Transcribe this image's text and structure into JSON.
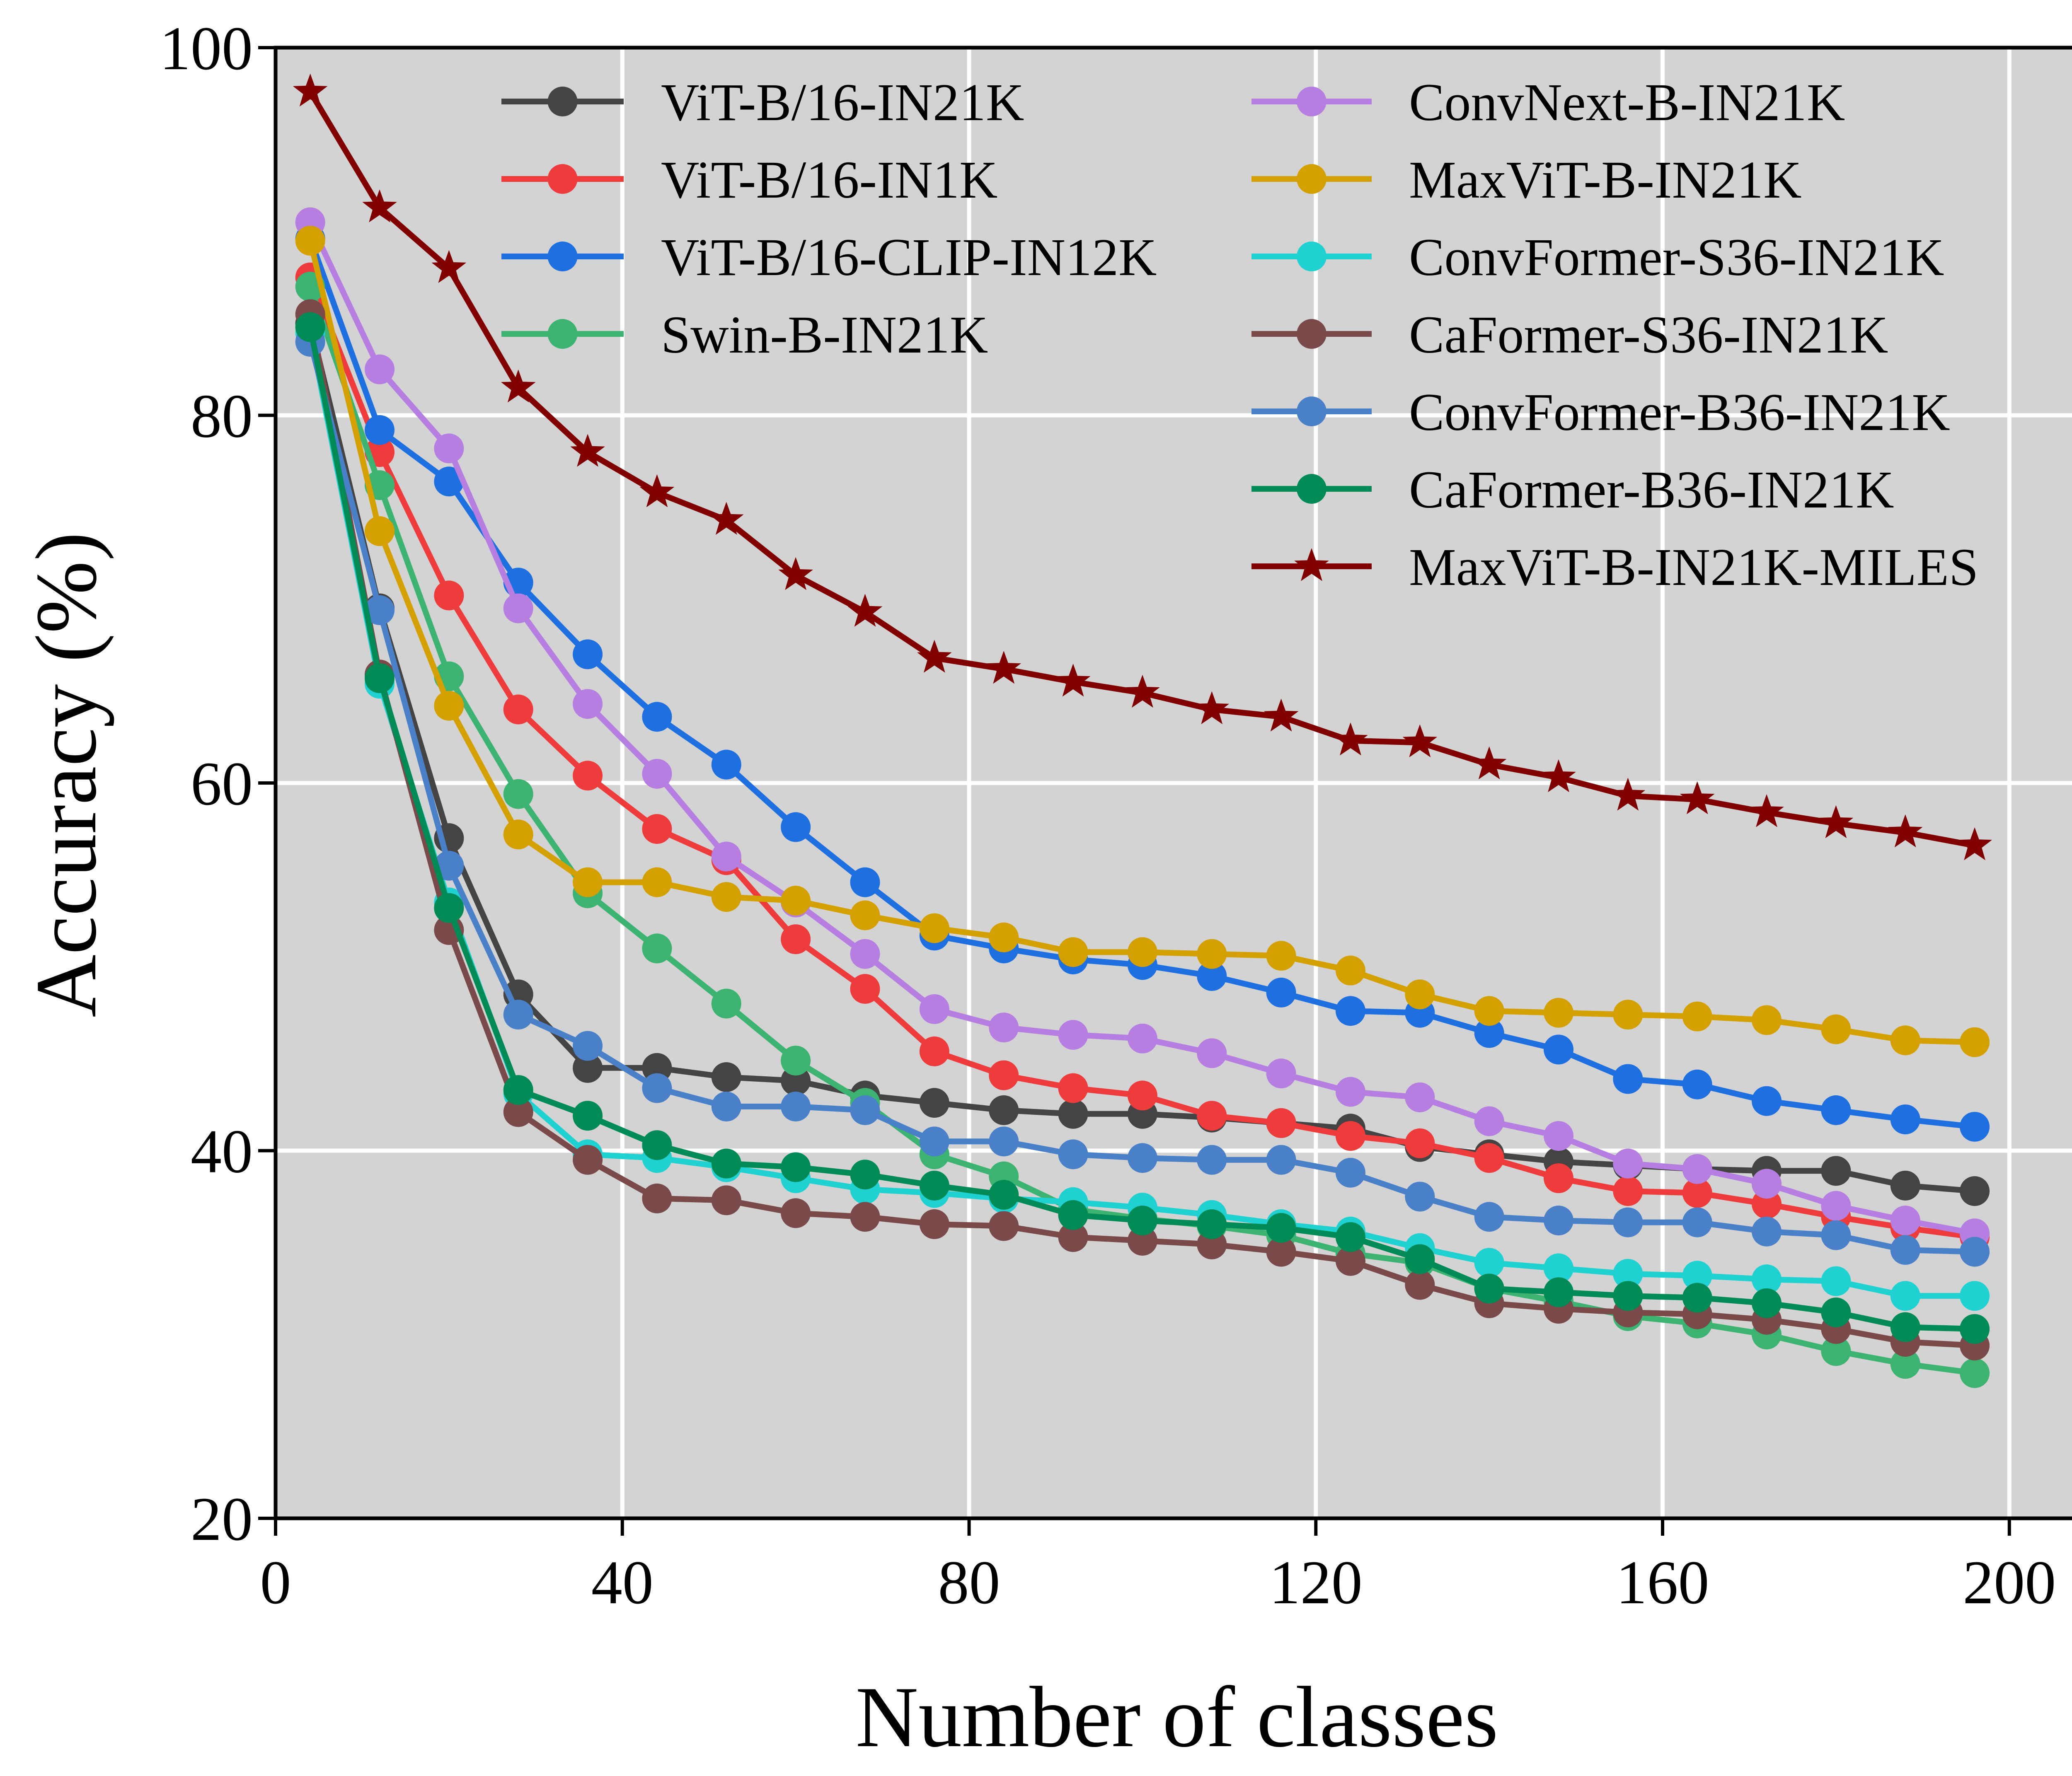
{
  "chart_data": {
    "type": "line",
    "title": "",
    "xlabel": "Number of classes",
    "ylabel": "Accuracy (%)",
    "xlim": [
      0,
      210
    ],
    "ylim": [
      20,
      100
    ],
    "xticks": [
      0,
      40,
      80,
      120,
      160,
      200
    ],
    "yticks": [
      20,
      40,
      60,
      80,
      100
    ],
    "grid": true,
    "legend_position": "top-right",
    "x": [
      4,
      12,
      20,
      28,
      36,
      44,
      52,
      60,
      68,
      76,
      84,
      92,
      100,
      108,
      116,
      124,
      132,
      140,
      148,
      156,
      164,
      172,
      180,
      188,
      196
    ],
    "series": [
      {
        "name": "ViT-B/16-IN21K",
        "color": "#444444",
        "marker": "circle",
        "values": [
          85.0,
          69.5,
          57.0,
          48.5,
          44.5,
          44.5,
          44.0,
          43.8,
          43.0,
          42.6,
          42.2,
          42.0,
          42.0,
          41.8,
          41.5,
          41.2,
          40.2,
          39.8,
          39.4,
          39.2,
          39.0,
          38.9,
          38.9,
          38.1,
          37.8
        ]
      },
      {
        "name": "ViT-B/16-IN1K",
        "color": "#ee3b3b",
        "marker": "circle",
        "values": [
          87.5,
          78.0,
          70.2,
          64.0,
          60.4,
          57.5,
          55.8,
          51.5,
          48.8,
          45.4,
          44.1,
          43.4,
          43.0,
          41.9,
          41.5,
          40.8,
          40.4,
          39.6,
          38.5,
          37.8,
          37.7,
          37.1,
          36.4,
          35.8,
          35.3
        ]
      },
      {
        "name": "ViT-B/16-CLIP-IN12K",
        "color": "#1e6fe0",
        "marker": "circle",
        "values": [
          89.6,
          79.2,
          76.4,
          70.9,
          67.0,
          63.6,
          61.0,
          57.6,
          54.6,
          51.7,
          51.0,
          50.4,
          50.1,
          49.5,
          48.6,
          47.6,
          47.5,
          46.4,
          45.5,
          43.9,
          43.6,
          42.7,
          42.2,
          41.7,
          41.3
        ]
      },
      {
        "name": "Swin-B-IN21K",
        "color": "#3cb371",
        "marker": "circle",
        "values": [
          87.0,
          76.2,
          65.8,
          59.4,
          54.0,
          51.0,
          48.0,
          44.9,
          42.6,
          39.8,
          38.6,
          36.8,
          36.3,
          35.9,
          35.4,
          34.4,
          33.9,
          32.5,
          31.8,
          31.0,
          30.6,
          30.0,
          29.1,
          28.4,
          27.9
        ]
      },
      {
        "name": "ConvNext-B-IN21K",
        "color": "#b57ee0",
        "marker": "circle",
        "values": [
          90.5,
          82.5,
          78.2,
          69.5,
          64.3,
          60.5,
          56.0,
          53.5,
          50.7,
          47.7,
          46.7,
          46.3,
          46.1,
          45.3,
          44.2,
          43.2,
          42.9,
          41.6,
          40.8,
          39.3,
          39.0,
          38.2,
          37.0,
          36.2,
          35.5
        ]
      },
      {
        "name": "MaxViT-B-IN21K",
        "color": "#d4a000",
        "marker": "circle",
        "values": [
          89.5,
          73.7,
          64.2,
          57.2,
          54.6,
          54.6,
          53.8,
          53.6,
          52.8,
          52.1,
          51.6,
          50.8,
          50.8,
          50.7,
          50.6,
          49.8,
          48.5,
          47.6,
          47.5,
          47.4,
          47.3,
          47.1,
          46.6,
          46.0,
          45.9
        ]
      },
      {
        "name": "ConvFormer-S36-IN21K",
        "color": "#1fd1d1",
        "marker": "circle",
        "values": [
          84.5,
          65.4,
          53.5,
          43.1,
          39.8,
          39.6,
          39.1,
          38.5,
          37.9,
          37.7,
          37.4,
          37.2,
          36.9,
          36.5,
          36.0,
          35.6,
          34.7,
          33.9,
          33.6,
          33.3,
          33.2,
          33.0,
          32.9,
          32.1,
          32.1
        ]
      },
      {
        "name": "CaFormer-S36-IN21K",
        "color": "#7a4a4a",
        "marker": "circle",
        "values": [
          85.5,
          65.9,
          52.0,
          42.1,
          39.5,
          37.4,
          37.3,
          36.6,
          36.4,
          36.0,
          35.9,
          35.3,
          35.1,
          34.9,
          34.5,
          34.0,
          32.7,
          31.7,
          31.4,
          31.2,
          31.1,
          30.8,
          30.3,
          29.6,
          29.4
        ]
      },
      {
        "name": "ConvFormer-B36-IN21K",
        "color": "#4a80c8",
        "marker": "circle",
        "values": [
          84.0,
          69.4,
          55.5,
          47.4,
          45.7,
          43.4,
          42.4,
          42.4,
          42.2,
          40.5,
          40.5,
          39.8,
          39.6,
          39.5,
          39.5,
          38.8,
          37.5,
          36.4,
          36.2,
          36.1,
          36.1,
          35.6,
          35.4,
          34.6,
          34.5
        ]
      },
      {
        "name": "CaFormer-B36-IN21K",
        "color": "#008a56",
        "marker": "circle",
        "values": [
          84.8,
          65.7,
          53.2,
          43.3,
          41.9,
          40.3,
          39.3,
          39.1,
          38.7,
          38.1,
          37.6,
          36.5,
          36.2,
          36.0,
          35.8,
          35.3,
          34.1,
          32.5,
          32.3,
          32.1,
          32.0,
          31.7,
          31.2,
          30.4,
          30.3
        ]
      },
      {
        "name": "MaxViT-B-IN21K-MILES",
        "color": "#800000",
        "marker": "star",
        "values": [
          97.6,
          91.3,
          88.0,
          81.5,
          78.0,
          75.8,
          74.3,
          71.3,
          69.3,
          66.8,
          66.2,
          65.5,
          64.9,
          64.0,
          63.6,
          62.3,
          62.2,
          61.0,
          60.3,
          59.3,
          59.1,
          58.4,
          57.8,
          57.3,
          56.6
        ]
      }
    ]
  }
}
